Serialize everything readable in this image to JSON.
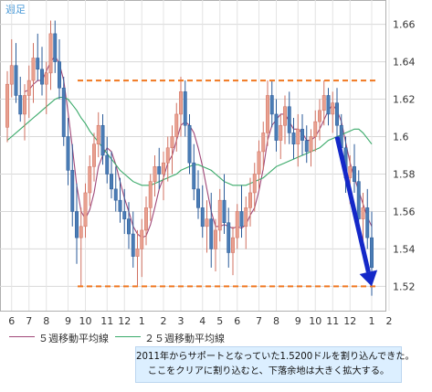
{
  "chart_data": {
    "type": "candlestick",
    "title": "週足",
    "y_ticks": [
      1.52,
      1.54,
      1.56,
      1.58,
      1.6,
      1.62,
      1.64,
      1.66
    ],
    "y_tick_labels": [
      "1.52",
      "1.54",
      "1.56",
      "1.58",
      "1.6",
      "1.62",
      "1.64",
      "1.66"
    ],
    "ylim": [
      1.507,
      1.673
    ],
    "x_tick_labels": [
      "6",
      "7",
      "8",
      "9",
      "10",
      "11",
      "12",
      "1",
      "2",
      "3",
      "4",
      "5",
      "6",
      "7",
      "8",
      "9",
      "10",
      "11",
      "12",
      "1",
      "2"
    ],
    "x_tick_candle_index": [
      1,
      5,
      9,
      14,
      18,
      23,
      27,
      31,
      36,
      40,
      45,
      49,
      53,
      58,
      62,
      67,
      71,
      75,
      79,
      84,
      88
    ],
    "up_color": "#e8a090",
    "down_color": "#4a7cb5",
    "candles": [
      [
        1.605,
        1.635,
        1.597,
        1.628
      ],
      [
        1.628,
        1.652,
        1.621,
        1.638
      ],
      [
        1.638,
        1.65,
        1.618,
        1.622
      ],
      [
        1.622,
        1.632,
        1.608,
        1.612
      ],
      [
        1.612,
        1.628,
        1.598,
        1.622
      ],
      [
        1.622,
        1.638,
        1.61,
        1.63
      ],
      [
        1.63,
        1.65,
        1.618,
        1.642
      ],
      [
        1.642,
        1.655,
        1.63,
        1.636
      ],
      [
        1.636,
        1.648,
        1.622,
        1.628
      ],
      [
        1.628,
        1.64,
        1.612,
        1.634
      ],
      [
        1.634,
        1.662,
        1.625,
        1.655
      ],
      [
        1.655,
        1.662,
        1.634,
        1.64
      ],
      [
        1.64,
        1.652,
        1.62,
        1.626
      ],
      [
        1.626,
        1.632,
        1.595,
        1.6
      ],
      [
        1.6,
        1.61,
        1.574,
        1.582
      ],
      [
        1.582,
        1.596,
        1.552,
        1.56
      ],
      [
        1.56,
        1.575,
        1.532,
        1.546
      ],
      [
        1.546,
        1.562,
        1.52,
        1.552
      ],
      [
        1.552,
        1.575,
        1.546,
        1.57
      ],
      [
        1.57,
        1.59,
        1.563,
        1.584
      ],
      [
        1.584,
        1.602,
        1.576,
        1.596
      ],
      [
        1.596,
        1.613,
        1.589,
        1.606
      ],
      [
        1.606,
        1.612,
        1.585,
        1.59
      ],
      [
        1.59,
        1.6,
        1.575,
        1.58
      ],
      [
        1.58,
        1.592,
        1.567,
        1.572
      ],
      [
        1.572,
        1.584,
        1.56,
        1.566
      ],
      [
        1.566,
        1.578,
        1.554,
        1.56
      ],
      [
        1.56,
        1.572,
        1.548,
        1.556
      ],
      [
        1.556,
        1.565,
        1.54,
        1.548
      ],
      [
        1.548,
        1.56,
        1.53,
        1.536
      ],
      [
        1.536,
        1.55,
        1.52,
        1.54
      ],
      [
        1.54,
        1.556,
        1.525,
        1.55
      ],
      [
        1.55,
        1.568,
        1.542,
        1.562
      ],
      [
        1.562,
        1.58,
        1.555,
        1.576
      ],
      [
        1.576,
        1.59,
        1.568,
        1.584
      ],
      [
        1.584,
        1.594,
        1.572,
        1.58
      ],
      [
        1.58,
        1.592,
        1.566,
        1.586
      ],
      [
        1.586,
        1.6,
        1.576,
        1.594
      ],
      [
        1.594,
        1.606,
        1.58,
        1.6
      ],
      [
        1.6,
        1.618,
        1.592,
        1.612
      ],
      [
        1.612,
        1.632,
        1.6,
        1.624
      ],
      [
        1.624,
        1.63,
        1.6,
        1.606
      ],
      [
        1.606,
        1.612,
        1.58,
        1.586
      ],
      [
        1.586,
        1.596,
        1.566,
        1.572
      ],
      [
        1.572,
        1.582,
        1.556,
        1.562
      ],
      [
        1.562,
        1.574,
        1.546,
        1.552
      ],
      [
        1.552,
        1.566,
        1.538,
        1.556
      ],
      [
        1.556,
        1.57,
        1.53,
        1.54
      ],
      [
        1.54,
        1.556,
        1.528,
        1.55
      ],
      [
        1.55,
        1.572,
        1.544,
        1.566
      ],
      [
        1.566,
        1.58,
        1.548,
        1.554
      ],
      [
        1.554,
        1.562,
        1.53,
        1.538
      ],
      [
        1.538,
        1.552,
        1.526,
        1.546
      ],
      [
        1.546,
        1.564,
        1.54,
        1.56
      ],
      [
        1.56,
        1.574,
        1.546,
        1.552
      ],
      [
        1.552,
        1.568,
        1.54,
        1.562
      ],
      [
        1.562,
        1.578,
        1.552,
        1.57
      ],
      [
        1.57,
        1.586,
        1.56,
        1.58
      ],
      [
        1.58,
        1.598,
        1.572,
        1.592
      ],
      [
        1.592,
        1.608,
        1.582,
        1.602
      ],
      [
        1.602,
        1.63,
        1.595,
        1.622
      ],
      [
        1.622,
        1.63,
        1.605,
        1.612
      ],
      [
        1.612,
        1.62,
        1.592,
        1.598
      ],
      [
        1.598,
        1.612,
        1.588,
        1.606
      ],
      [
        1.606,
        1.622,
        1.596,
        1.616
      ],
      [
        1.616,
        1.624,
        1.596,
        1.602
      ],
      [
        1.602,
        1.61,
        1.588,
        1.596
      ],
      [
        1.596,
        1.612,
        1.584,
        1.604
      ],
      [
        1.604,
        1.612,
        1.59,
        1.598
      ],
      [
        1.598,
        1.606,
        1.586,
        1.592
      ],
      [
        1.592,
        1.604,
        1.584,
        1.6
      ],
      [
        1.6,
        1.614,
        1.592,
        1.608
      ],
      [
        1.608,
        1.62,
        1.598,
        1.614
      ],
      [
        1.614,
        1.63,
        1.606,
        1.622
      ],
      [
        1.622,
        1.626,
        1.606,
        1.612
      ],
      [
        1.612,
        1.624,
        1.602,
        1.618
      ],
      [
        1.618,
        1.626,
        1.6,
        1.606
      ],
      [
        1.606,
        1.612,
        1.588,
        1.594
      ],
      [
        1.594,
        1.6,
        1.57,
        1.578
      ],
      [
        1.578,
        1.59,
        1.564,
        1.584
      ],
      [
        1.584,
        1.596,
        1.57,
        1.576
      ],
      [
        1.576,
        1.582,
        1.548,
        1.556
      ],
      [
        1.556,
        1.57,
        1.54,
        1.562
      ],
      [
        1.562,
        1.572,
        1.54,
        1.546
      ],
      [
        1.546,
        1.56,
        1.515,
        1.53
      ]
    ],
    "series": [
      {
        "name": "５週移動平均線",
        "color": "#a04878",
        "values": [
          null,
          null,
          null,
          null,
          1.624,
          1.625,
          1.628,
          1.63,
          1.63,
          1.635,
          1.64,
          1.643,
          1.639,
          1.63,
          1.613,
          1.594,
          1.574,
          1.56,
          1.556,
          1.561,
          1.57,
          1.584,
          1.59,
          1.594,
          1.592,
          1.585,
          1.576,
          1.567,
          1.56,
          1.552,
          1.548,
          1.546,
          1.547,
          1.553,
          1.562,
          1.572,
          1.578,
          1.586,
          1.59,
          1.598,
          1.606,
          1.608,
          1.606,
          1.602,
          1.594,
          1.584,
          1.572,
          1.56,
          1.552,
          1.552,
          1.553,
          1.552,
          1.551,
          1.552,
          1.551,
          1.553,
          1.558,
          1.562,
          1.571,
          1.583,
          1.598,
          1.606,
          1.609,
          1.612,
          1.612,
          1.608,
          1.604,
          1.604,
          1.602,
          1.598,
          1.598,
          1.6,
          1.604,
          1.609,
          1.614,
          1.617,
          1.614,
          1.608,
          1.597,
          1.586,
          1.578,
          1.571,
          1.564,
          1.557,
          1.552
        ]
      },
      {
        "name": "２５週移動平均線",
        "color": "#3aaa6a",
        "values": [
          1.598,
          1.6,
          1.602,
          1.604,
          1.606,
          1.608,
          1.61,
          1.612,
          1.614,
          1.616,
          1.618,
          1.62,
          1.621,
          1.621,
          1.62,
          1.617,
          1.614,
          1.61,
          1.607,
          1.603,
          1.6,
          1.597,
          1.594,
          1.591,
          1.588,
          1.585,
          1.582,
          1.58,
          1.578,
          1.576,
          1.575,
          1.574,
          1.574,
          1.574,
          1.575,
          1.576,
          1.577,
          1.578,
          1.579,
          1.58,
          1.582,
          1.583,
          1.584,
          1.585,
          1.585,
          1.584,
          1.583,
          1.582,
          1.58,
          1.578,
          1.576,
          1.575,
          1.574,
          1.574,
          1.574,
          1.574,
          1.575,
          1.576,
          1.577,
          1.578,
          1.58,
          1.582,
          1.584,
          1.585,
          1.586,
          1.587,
          1.588,
          1.589,
          1.59,
          1.591,
          1.592,
          1.593,
          1.594,
          1.596,
          1.598,
          1.599,
          1.6,
          1.601,
          1.602,
          1.603,
          1.604,
          1.604,
          1.602,
          1.599,
          1.596
        ]
      }
    ],
    "resistance_line": {
      "value": 1.63,
      "color": "#f07820"
    },
    "support_line": {
      "value": 1.52,
      "color": "#f07820"
    },
    "arrow": {
      "from": {
        "candle": 76,
        "value": 1.6
      },
      "to": {
        "candle": 84,
        "value": 1.52
      },
      "color": "#1428c8"
    },
    "legend": [
      {
        "label": "５週移動平均線",
        "color": "#a04878"
      },
      {
        "label": "２５週移動平均線",
        "color": "#3aaa6a"
      }
    ],
    "annotation_lines": [
      "2011年からサポートとなっていた1.5200ドルを割り込んできた。",
      "ここをクリアに割り込むと、下落余地は大きく拡大する。"
    ],
    "grid": true
  }
}
